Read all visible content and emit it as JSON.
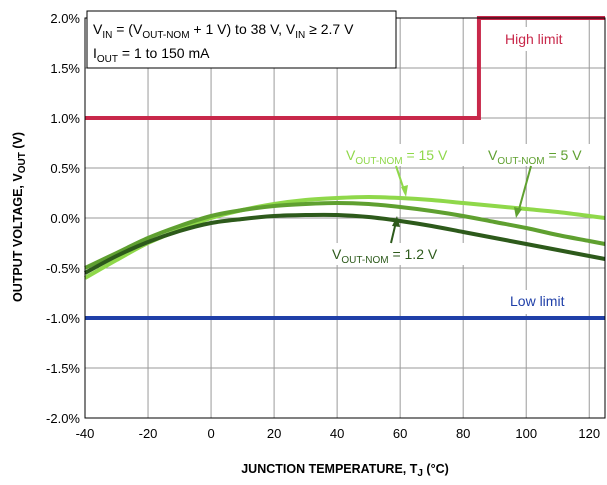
{
  "chart_data": {
    "type": "line",
    "xlabel": "JUNCTION TEMPERATURE, T",
    "xlabel_sub": "J",
    "xlabel_unit": " (°C)",
    "ylabel": "OUTPUT VOLTAGE, V",
    "ylabel_sub": "OUT",
    "ylabel_unit": " (V)",
    "xlim": [
      -40,
      125
    ],
    "ylim": [
      -2.0,
      2.0
    ],
    "x_ticks": [
      -40,
      -20,
      0,
      20,
      40,
      60,
      80,
      100,
      120
    ],
    "y_ticks": [
      {
        "value": 2.0,
        "label": "2.0%"
      },
      {
        "value": 1.5,
        "label": "1.5%"
      },
      {
        "value": 1.0,
        "label": "1.0%"
      },
      {
        "value": 0.5,
        "label": "0.5%"
      },
      {
        "value": 0.0,
        "label": "0.0%"
      },
      {
        "value": -0.5,
        "label": "-0.5%"
      },
      {
        "value": -1.0,
        "label": "-1.0%"
      },
      {
        "value": -1.5,
        "label": "-1.5%"
      },
      {
        "value": -2.0,
        "label": "-2.0%"
      }
    ],
    "grid": true,
    "conditions": {
      "line1_a": "V",
      "line1_a_sub": "IN",
      "line1_b": " = (V",
      "line1_b_sub": "OUT-NOM",
      "line1_c": " + 1 V) to 38 V, V",
      "line1_c_sub": "IN",
      "line1_d": " ≥ 2.7 V",
      "line2_a": "I",
      "line2_a_sub": "OUT",
      "line2_b": " = 1 to 150 mA"
    },
    "limits": [
      {
        "name": "High limit",
        "color": "#c8284a",
        "x": [
          -40,
          85,
          85,
          125
        ],
        "y": [
          1.0,
          1.0,
          2.0,
          2.0
        ]
      },
      {
        "name": "Low limit",
        "color": "#1f3fa8",
        "x": [
          -40,
          125
        ],
        "y": [
          -1.0,
          -1.0
        ]
      }
    ],
    "series": [
      {
        "label_pre": "V",
        "label_sub": "OUT-NOM",
        "label_post": " = 15 V",
        "color": "#8fd84a",
        "x": [
          -40,
          -30,
          -20,
          -10,
          0,
          10,
          20,
          30,
          40,
          50,
          60,
          70,
          80,
          90,
          100,
          110,
          120,
          125
        ],
        "y": [
          -0.6,
          -0.42,
          -0.25,
          -0.12,
          0.0,
          0.08,
          0.14,
          0.18,
          0.2,
          0.21,
          0.2,
          0.18,
          0.15,
          0.12,
          0.09,
          0.06,
          0.02,
          0.0
        ]
      },
      {
        "label_pre": "V",
        "label_sub": "OUT-NOM",
        "label_post": " = 5 V",
        "color": "#5fa030",
        "x": [
          -40,
          -30,
          -20,
          -10,
          0,
          10,
          20,
          30,
          40,
          50,
          60,
          70,
          80,
          90,
          100,
          110,
          120,
          125
        ],
        "y": [
          -0.5,
          -0.35,
          -0.2,
          -0.08,
          0.02,
          0.08,
          0.12,
          0.14,
          0.15,
          0.14,
          0.11,
          0.07,
          0.02,
          -0.04,
          -0.1,
          -0.17,
          -0.23,
          -0.26
        ]
      },
      {
        "label_pre": "V",
        "label_sub": "OUT-NOM",
        "label_post": " = 1.2 V",
        "color": "#2d5a1b",
        "x": [
          -40,
          -30,
          -20,
          -10,
          0,
          10,
          20,
          30,
          40,
          50,
          60,
          70,
          80,
          90,
          100,
          110,
          120,
          125
        ],
        "y": [
          -0.55,
          -0.38,
          -0.24,
          -0.13,
          -0.05,
          -0.01,
          0.02,
          0.03,
          0.03,
          0.01,
          -0.03,
          -0.08,
          -0.14,
          -0.2,
          -0.26,
          -0.32,
          -0.38,
          -0.41
        ]
      }
    ]
  }
}
